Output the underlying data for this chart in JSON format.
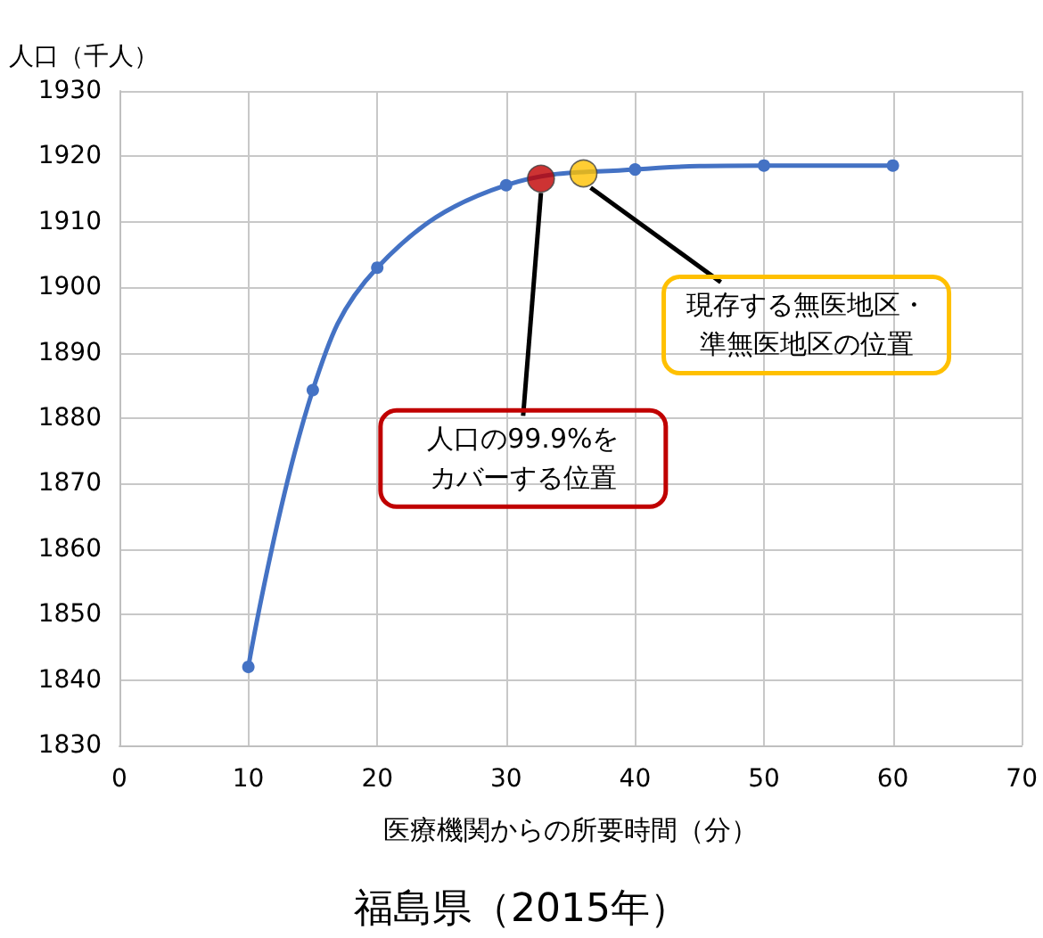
{
  "chart_data": {
    "type": "line",
    "title": "福島県（2015年）",
    "xlabel": "医療機関からの所要時間（分）",
    "ylabel": "人口（千人）",
    "series": [
      {
        "color": "#4472c4",
        "x": [
          10,
          15,
          20,
          30,
          40,
          50,
          60
        ],
        "values": [
          1842,
          1884.3,
          1903,
          1915.6,
          1918,
          1918.6,
          1918.6
        ]
      },
      {
        "type": "scatter",
        "color": "#c00000",
        "x": [
          32.7
        ],
        "values": [
          1916.6
        ]
      },
      {
        "type": "scatter",
        "color": "#ffc000",
        "x": [
          36
        ],
        "values": [
          1917.4
        ]
      }
    ],
    "xlim": [
      0,
      70
    ],
    "xticks": [
      0,
      10,
      20,
      30,
      40,
      50,
      60,
      70
    ],
    "ylim": [
      1830,
      1930
    ],
    "yticks": [
      1830,
      1840,
      1850,
      1860,
      1870,
      1880,
      1890,
      1900,
      1910,
      1920,
      1930
    ],
    "grid": true,
    "marker": "circle",
    "line_style": "solid",
    "annotations": [
      {
        "text": "人口の99.9%をカバーする位置",
        "x": 32.7,
        "y": 1916.6
      },
      {
        "text": "現存する無医地区・準無医地区の位置",
        "x": 36,
        "y": 1917.4
      }
    ]
  }
}
